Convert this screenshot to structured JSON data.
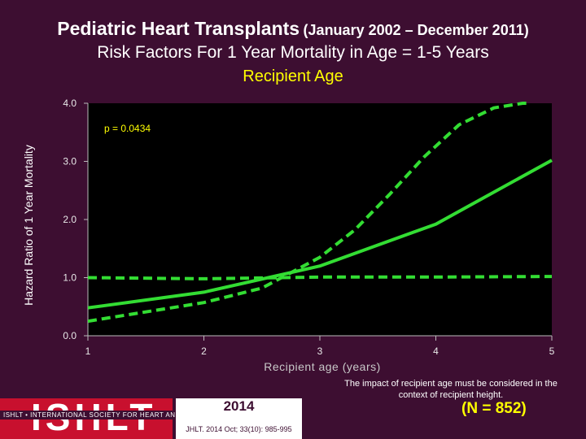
{
  "header": {
    "title_main": "Pediatric Heart Transplants",
    "title_range": "(January 2002 – December 2011)",
    "subtitle": "Risk Factors For 1 Year Mortality in Age = 1-5 Years",
    "subtitle2": "Recipient Age"
  },
  "chart_data": {
    "type": "line",
    "xlabel": "Recipient age (years)",
    "ylabel": "Hazard Ratio of 1 Year Mortality",
    "xlim": [
      1,
      5
    ],
    "ylim": [
      0,
      4
    ],
    "x_ticks": [
      "1",
      "2",
      "3",
      "4",
      "5"
    ],
    "y_ticks": [
      "0.0",
      "1.0",
      "2.0",
      "3.0",
      "4.0"
    ],
    "annotation": "p = 0.0434",
    "series": [
      {
        "style": "solid",
        "x": [
          1,
          2,
          3,
          4,
          5
        ],
        "values": [
          0.48,
          0.75,
          1.2,
          1.92,
          3.02
        ]
      },
      {
        "style": "dashed",
        "x": [
          1,
          2,
          2.5,
          3,
          3.3,
          3.6,
          3.9,
          4.2,
          4.5,
          4.75,
          4.82
        ],
        "values": [
          0.25,
          0.57,
          0.82,
          1.35,
          1.82,
          2.43,
          3.08,
          3.63,
          3.92,
          4.0,
          4.0
        ]
      },
      {
        "style": "dashed",
        "x": [
          1,
          2,
          3,
          4,
          5
        ],
        "values": [
          1.0,
          0.98,
          1.01,
          1.01,
          1.02
        ]
      }
    ],
    "colors": {
      "line": "#33dd33",
      "plot_bg": "#000000",
      "axis": "#bbbbbb"
    }
  },
  "notes": {
    "context": "The impact of recipient age must be considered in the context of recipient height.",
    "n": "(N = 852)"
  },
  "footer": {
    "logo": "ISHLT",
    "logo_strip": "ISHLT • INTERNATIONAL SOCIETY FOR HEART AND LUNG TRANSPLANTATION",
    "year": "2014",
    "citation": "JHLT. 2014 Oct; 33(10): 985-995"
  }
}
